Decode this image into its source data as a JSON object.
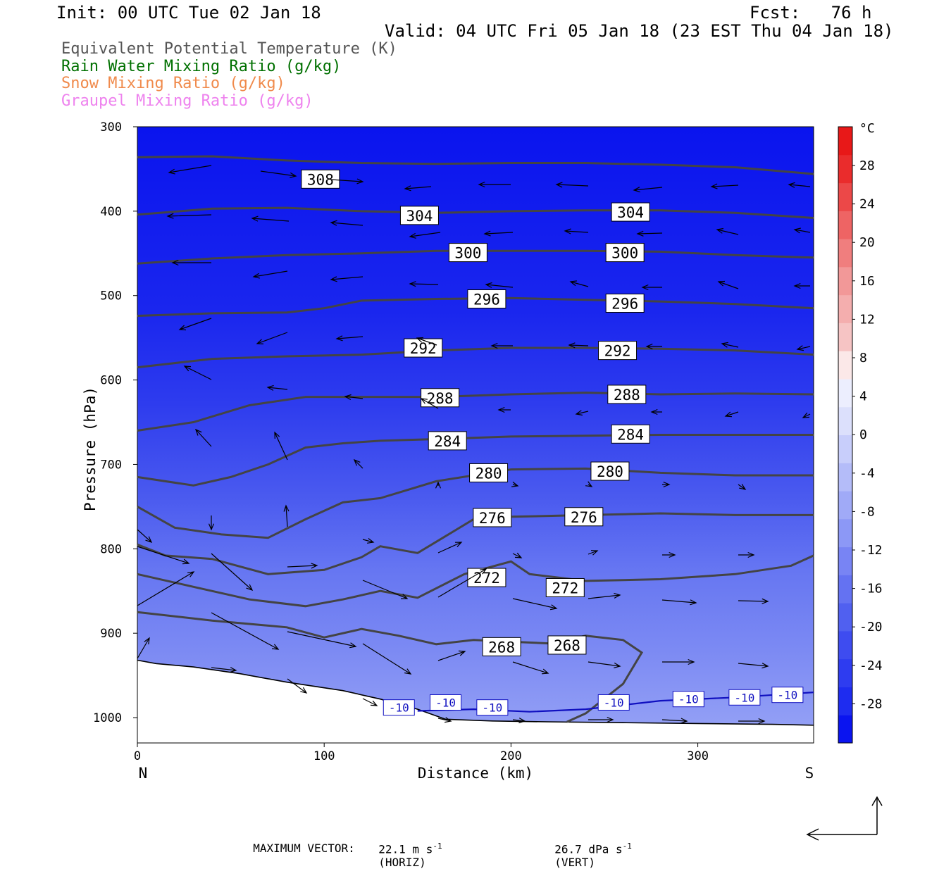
{
  "header": {
    "init": "Init: 00 UTC Tue 02 Jan 18",
    "fcst": "Fcst:   76 h",
    "valid": "Valid: 04 UTC Fri 05 Jan 18 (23 EST Thu 04 Jan 18)"
  },
  "fields": [
    {
      "label": "Equivalent Potential Temperature (K)",
      "color": "#555555"
    },
    {
      "label": "Rain Water Mixing Ratio (g/kg)",
      "color": "#007000"
    },
    {
      "label": "Snow Mixing Ratio (g/kg)",
      "color": "#f08a4b"
    },
    {
      "label": "Graupel Mixing Ratio (g/kg)",
      "color": "#ee82ee"
    }
  ],
  "footer": {
    "max_vector_label": "MAXIMUM VECTOR:",
    "horiz": "22.1 m s",
    "horiz_exp": "-1",
    "horiz_tag": "(HORIZ)",
    "vert": "26.7 dPa s",
    "vert_exp": "-1",
    "vert_tag": "(VERT)"
  },
  "chart_data": {
    "type": "contour-cross-section",
    "xlabel": "Distance (km)",
    "ylabel": "Pressure (hPa)",
    "xlim": [
      0,
      362
    ],
    "ylim": [
      1030,
      300
    ],
    "x_ticks": [
      0,
      100,
      200,
      300
    ],
    "y_ticks": [
      300,
      400,
      500,
      600,
      700,
      800,
      900,
      1000
    ],
    "x_end_labels": {
      "left": "N",
      "right": "S"
    },
    "colorbar": {
      "unit": "°C",
      "labels": [
        28,
        24,
        20,
        16,
        12,
        8,
        4,
        0,
        -4,
        -8,
        -12,
        -16,
        -20,
        -24,
        -28
      ],
      "colors": [
        "#0a14f0",
        "#1e2cf0",
        "#2e3cf0",
        "#3e4cf0",
        "#5060f0",
        "#6472f2",
        "#7884f4",
        "#8c98f6",
        "#a0aaf7",
        "#b4bcf9",
        "#c8cefb",
        "#dce0fc",
        "#eceefe",
        "#fbe8e8",
        "#f6c4c4",
        "#f4aeae",
        "#f29898",
        "#f07e7e",
        "#ee6464",
        "#ec4848",
        "#ea2c2c",
        "#e81818"
      ]
    },
    "theta_e_contours": [
      {
        "label": "308",
        "points": [
          [
            0,
            336
          ],
          [
            40,
            335
          ],
          [
            80,
            340
          ],
          [
            120,
            343
          ],
          [
            160,
            344
          ],
          [
            200,
            343
          ],
          [
            240,
            343
          ],
          [
            280,
            345
          ],
          [
            320,
            348
          ],
          [
            362,
            356
          ]
        ]
      },
      {
        "label": "304",
        "points": [
          [
            0,
            404
          ],
          [
            40,
            397
          ],
          [
            80,
            396
          ],
          [
            120,
            400
          ],
          [
            160,
            402
          ],
          [
            200,
            400
          ],
          [
            240,
            399
          ],
          [
            280,
            399
          ],
          [
            320,
            402
          ],
          [
            362,
            408
          ]
        ]
      },
      {
        "label": "300",
        "points": [
          [
            0,
            462
          ],
          [
            40,
            456
          ],
          [
            80,
            452
          ],
          [
            120,
            450
          ],
          [
            160,
            447
          ],
          [
            200,
            447
          ],
          [
            240,
            447
          ],
          [
            280,
            448
          ],
          [
            320,
            452
          ],
          [
            362,
            455
          ]
        ]
      },
      {
        "label": "296",
        "points": [
          [
            0,
            524
          ],
          [
            40,
            521
          ],
          [
            80,
            520
          ],
          [
            100,
            515
          ],
          [
            120,
            506
          ],
          [
            160,
            504
          ],
          [
            200,
            503
          ],
          [
            240,
            505
          ],
          [
            280,
            507
          ],
          [
            320,
            510
          ],
          [
            362,
            515
          ]
        ]
      },
      {
        "label": "292",
        "points": [
          [
            0,
            585
          ],
          [
            40,
            575
          ],
          [
            80,
            572
          ],
          [
            120,
            570
          ],
          [
            160,
            565
          ],
          [
            200,
            562
          ],
          [
            240,
            562
          ],
          [
            280,
            563
          ],
          [
            320,
            565
          ],
          [
            362,
            570
          ]
        ]
      },
      {
        "label": "288",
        "points": [
          [
            0,
            660
          ],
          [
            30,
            650
          ],
          [
            60,
            630
          ],
          [
            90,
            620
          ],
          [
            130,
            620
          ],
          [
            160,
            620
          ],
          [
            200,
            617
          ],
          [
            240,
            615
          ],
          [
            280,
            617
          ],
          [
            320,
            616
          ],
          [
            362,
            617
          ]
        ]
      },
      {
        "label": "284",
        "points": [
          [
            0,
            715
          ],
          [
            30,
            725
          ],
          [
            50,
            715
          ],
          [
            70,
            700
          ],
          [
            90,
            680
          ],
          [
            110,
            675
          ],
          [
            130,
            672
          ],
          [
            160,
            670
          ],
          [
            200,
            667
          ],
          [
            240,
            666
          ],
          [
            280,
            665
          ],
          [
            320,
            665
          ],
          [
            362,
            665
          ]
        ]
      },
      {
        "label": "280",
        "points": [
          [
            0,
            750
          ],
          [
            20,
            775
          ],
          [
            45,
            783
          ],
          [
            70,
            787
          ],
          [
            90,
            765
          ],
          [
            110,
            745
          ],
          [
            130,
            740
          ],
          [
            160,
            720
          ],
          [
            200,
            706
          ],
          [
            240,
            705
          ],
          [
            280,
            710
          ],
          [
            320,
            713
          ],
          [
            362,
            713
          ]
        ]
      },
      {
        "label": "276",
        "points": [
          [
            0,
            795
          ],
          [
            15,
            808
          ],
          [
            40,
            812
          ],
          [
            70,
            830
          ],
          [
            100,
            825
          ],
          [
            120,
            810
          ],
          [
            130,
            797
          ],
          [
            150,
            805
          ],
          [
            165,
            785
          ],
          [
            180,
            765
          ],
          [
            200,
            762
          ],
          [
            240,
            760
          ],
          [
            280,
            758
          ],
          [
            320,
            760
          ],
          [
            362,
            760
          ]
        ]
      },
      {
        "label": "272",
        "points": [
          [
            0,
            830
          ],
          [
            30,
            845
          ],
          [
            60,
            860
          ],
          [
            90,
            868
          ],
          [
            110,
            860
          ],
          [
            130,
            850
          ],
          [
            150,
            858
          ],
          [
            175,
            830
          ],
          [
            200,
            815
          ],
          [
            210,
            830
          ],
          [
            240,
            838
          ],
          [
            280,
            836
          ],
          [
            320,
            830
          ],
          [
            350,
            820
          ],
          [
            362,
            808
          ]
        ]
      },
      {
        "label": "268",
        "points": [
          [
            0,
            875
          ],
          [
            40,
            885
          ],
          [
            80,
            893
          ],
          [
            100,
            905
          ],
          [
            120,
            895
          ],
          [
            140,
            903
          ],
          [
            160,
            913
          ],
          [
            180,
            908
          ],
          [
            200,
            910
          ],
          [
            220,
            912
          ],
          [
            240,
            903
          ],
          [
            260,
            908
          ],
          [
            270,
            923
          ],
          [
            260,
            960
          ],
          [
            240,
            995
          ],
          [
            230,
            1005
          ]
        ]
      }
    ],
    "temperature_contour": {
      "label": "-10",
      "color": "#1010c0",
      "points": [
        [
          150,
          992
        ],
        [
          180,
          990
        ],
        [
          210,
          993
        ],
        [
          240,
          990
        ],
        [
          280,
          980
        ],
        [
          320,
          976
        ],
        [
          362,
          970
        ]
      ]
    },
    "temperature_contour_labels": [
      [
        140,
        988
      ],
      [
        165,
        982
      ],
      [
        190,
        988
      ],
      [
        255,
        982
      ],
      [
        295,
        978
      ],
      [
        325,
        976
      ],
      [
        348,
        973
      ]
    ],
    "terrain": [
      [
        0,
        932
      ],
      [
        10,
        936
      ],
      [
        30,
        940
      ],
      [
        55,
        948
      ],
      [
        80,
        958
      ],
      [
        110,
        968
      ],
      [
        130,
        978
      ],
      [
        150,
        990
      ],
      [
        165,
        1002
      ],
      [
        190,
        1004
      ],
      [
        220,
        1005
      ],
      [
        260,
        1006
      ],
      [
        300,
        1007
      ],
      [
        340,
        1008
      ],
      [
        362,
        1009
      ]
    ]
  }
}
